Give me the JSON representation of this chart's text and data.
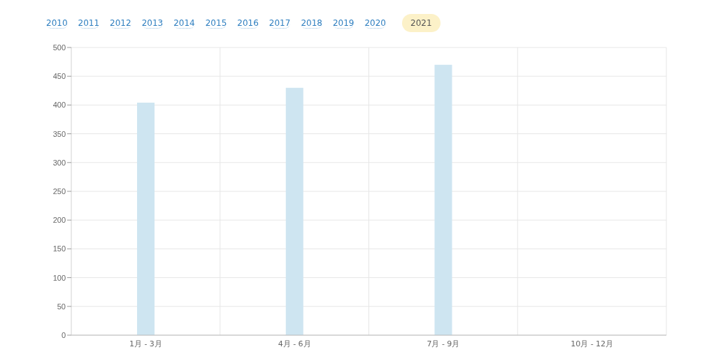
{
  "chart_data": {
    "type": "bar",
    "annotations": [
      "2010",
      "2011",
      "2012",
      "2013",
      "2014",
      "2015",
      "2016",
      "2017",
      "2018",
      "2019",
      "2020",
      "2021"
    ],
    "categories": [
      "1月 - 3月",
      "4月 - 6月",
      "7月 - 9月",
      "10月 - 12月"
    ],
    "values": [
      404,
      430,
      470,
      null
    ],
    "color": "#cee5f1",
    "ylim": [
      0,
      500
    ],
    "yticks": [
      0,
      50,
      100,
      150,
      200,
      250,
      300,
      350,
      400,
      450,
      500
    ],
    "grid": true
  }
}
